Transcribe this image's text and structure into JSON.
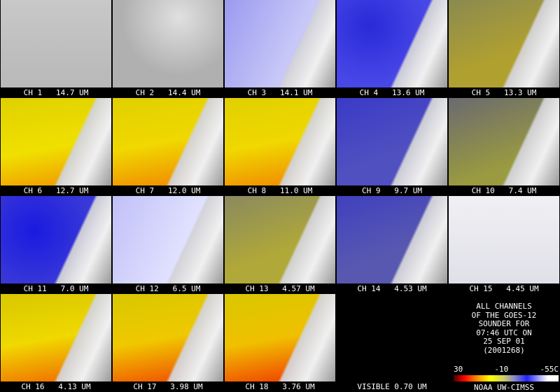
{
  "panels": [
    {
      "label": "CH 1   14.7 UM"
    },
    {
      "label": "CH 2   14.4 UM"
    },
    {
      "label": "CH 3   14.1 UM"
    },
    {
      "label": "CH 4   13.6 UM"
    },
    {
      "label": "CH 5   13.3 UM"
    },
    {
      "label": "CH 6   12.7 UM"
    },
    {
      "label": "CH 7   12.0 UM"
    },
    {
      "label": "CH 8   11.0 UM"
    },
    {
      "label": "CH 9   9.7 UM"
    },
    {
      "label": "CH 10   7.4 UM"
    },
    {
      "label": "CH 11   7.0 UM"
    },
    {
      "label": "CH 12   6.5 UM"
    },
    {
      "label": "CH 13   4.57 UM"
    },
    {
      "label": "CH 14   4.53 UM"
    },
    {
      "label": "CH 15   4.45 UM"
    },
    {
      "label": "CH 16   4.13 UM"
    },
    {
      "label": "CH 17   3.98 UM"
    },
    {
      "label": "CH 18   3.76 UM"
    },
    {
      "label": "VISIBLE 0.70 UM"
    }
  ],
  "info": {
    "lines": [
      "ALL CHANNELS",
      "OF THE GOES-12",
      "SOUNDER FOR",
      "07:46 UTC ON",
      "25 SEP 01",
      "(2001268)"
    ],
    "scale": [
      "30",
      "-10",
      "-55C"
    ],
    "credit": "NOAA UW-CIMSS"
  }
}
